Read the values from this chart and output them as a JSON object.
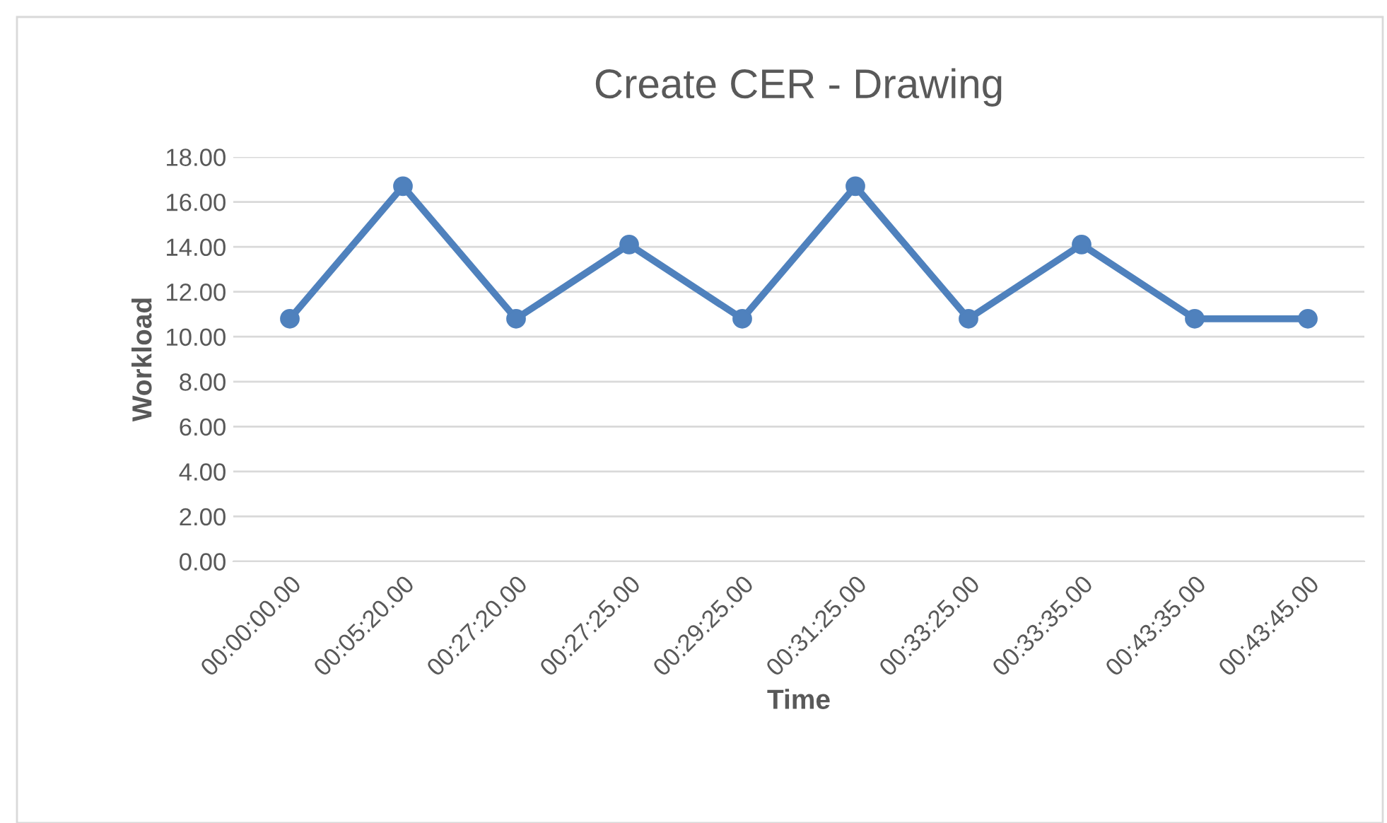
{
  "chart_data": {
    "type": "line",
    "title": "Create CER - Drawing",
    "xlabel": "Time",
    "ylabel": "Workload",
    "categories": [
      "00:00:00.00",
      "00:05:20.00",
      "00:27:20.00",
      "00:27:25.00",
      "00:29:25.00",
      "00:31:25.00",
      "00:33:25.00",
      "00:33:35.00",
      "00:43:35.00",
      "00:43:45.00"
    ],
    "series": [
      {
        "color": "#4f81bd",
        "values": [
          10.8,
          16.7,
          10.8,
          14.1,
          10.8,
          16.7,
          10.8,
          14.1,
          10.8,
          10.8
        ]
      }
    ],
    "ylim": [
      0,
      18
    ],
    "yticks": [
      {
        "value": 0,
        "label": "0.00"
      },
      {
        "value": 2,
        "label": "2.00"
      },
      {
        "value": 4,
        "label": "4.00"
      },
      {
        "value": 6,
        "label": "6.00"
      },
      {
        "value": 8,
        "label": "8.00"
      },
      {
        "value": 10,
        "label": "10.00"
      },
      {
        "value": 12,
        "label": "12.00"
      },
      {
        "value": 14,
        "label": "14.00"
      },
      {
        "value": 16,
        "label": "16.00"
      },
      {
        "value": 18,
        "label": "18.00"
      }
    ],
    "grid": "y",
    "legend": false,
    "marker": "circle",
    "line_style": "solid"
  }
}
